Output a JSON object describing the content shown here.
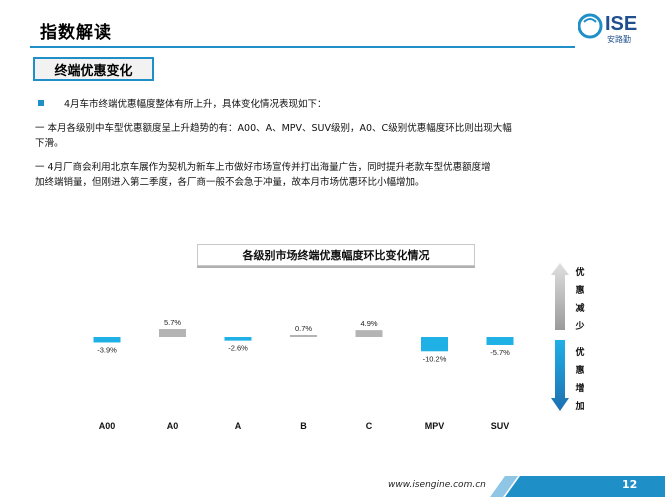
{
  "header": {
    "title": "指数解读"
  },
  "logo": {
    "text": "ISE",
    "subtext": "安路勤"
  },
  "section": {
    "title": "终端优惠变化"
  },
  "paragraphs": {
    "p1": "4月车市终端优惠幅度整体有所上升，具体变化情况表现如下：",
    "p2a": "一   本月各级别中车型优惠额度呈上升趋势的有：A00、A、MPV、SUV级别，A0、C级别优惠幅度环比则出现大幅",
    "p2b": "下滑。",
    "p3a": "一   4月厂商会利用北京车展作为契机为新车上市做好市场宣传并打出海量广告，同时提升老款车型优惠额度增",
    "p3b": "加终端销量，但刚进入第二季度，各厂商一般不会急于冲量，故本月市场优惠环比小幅增加。"
  },
  "arrows": {
    "up_label": [
      "优",
      "惠",
      "减",
      "少"
    ],
    "down_label": [
      "优",
      "惠",
      "增",
      "加"
    ]
  },
  "chart_data": {
    "type": "bar",
    "title": "各级别市场终端优惠幅度环比变化情况",
    "categories": [
      "A00",
      "A0",
      "A",
      "B",
      "C",
      "MPV",
      "SUV"
    ],
    "values": [
      -3.9,
      5.7,
      -2.6,
      0.7,
      4.9,
      -10.2,
      -5.7
    ],
    "labels": [
      "-3.9%",
      "5.7%",
      "-2.6%",
      "0.7%",
      "4.9%",
      "-10.2%",
      "-5.7%"
    ],
    "unit": "%",
    "positive_color": "#b4b4b4",
    "negative_color": "#1fb0e6",
    "grid": false
  },
  "footer": {
    "url": "www.isengine.com.cn",
    "page": "12",
    "bar_color": "#1f8fc8"
  }
}
